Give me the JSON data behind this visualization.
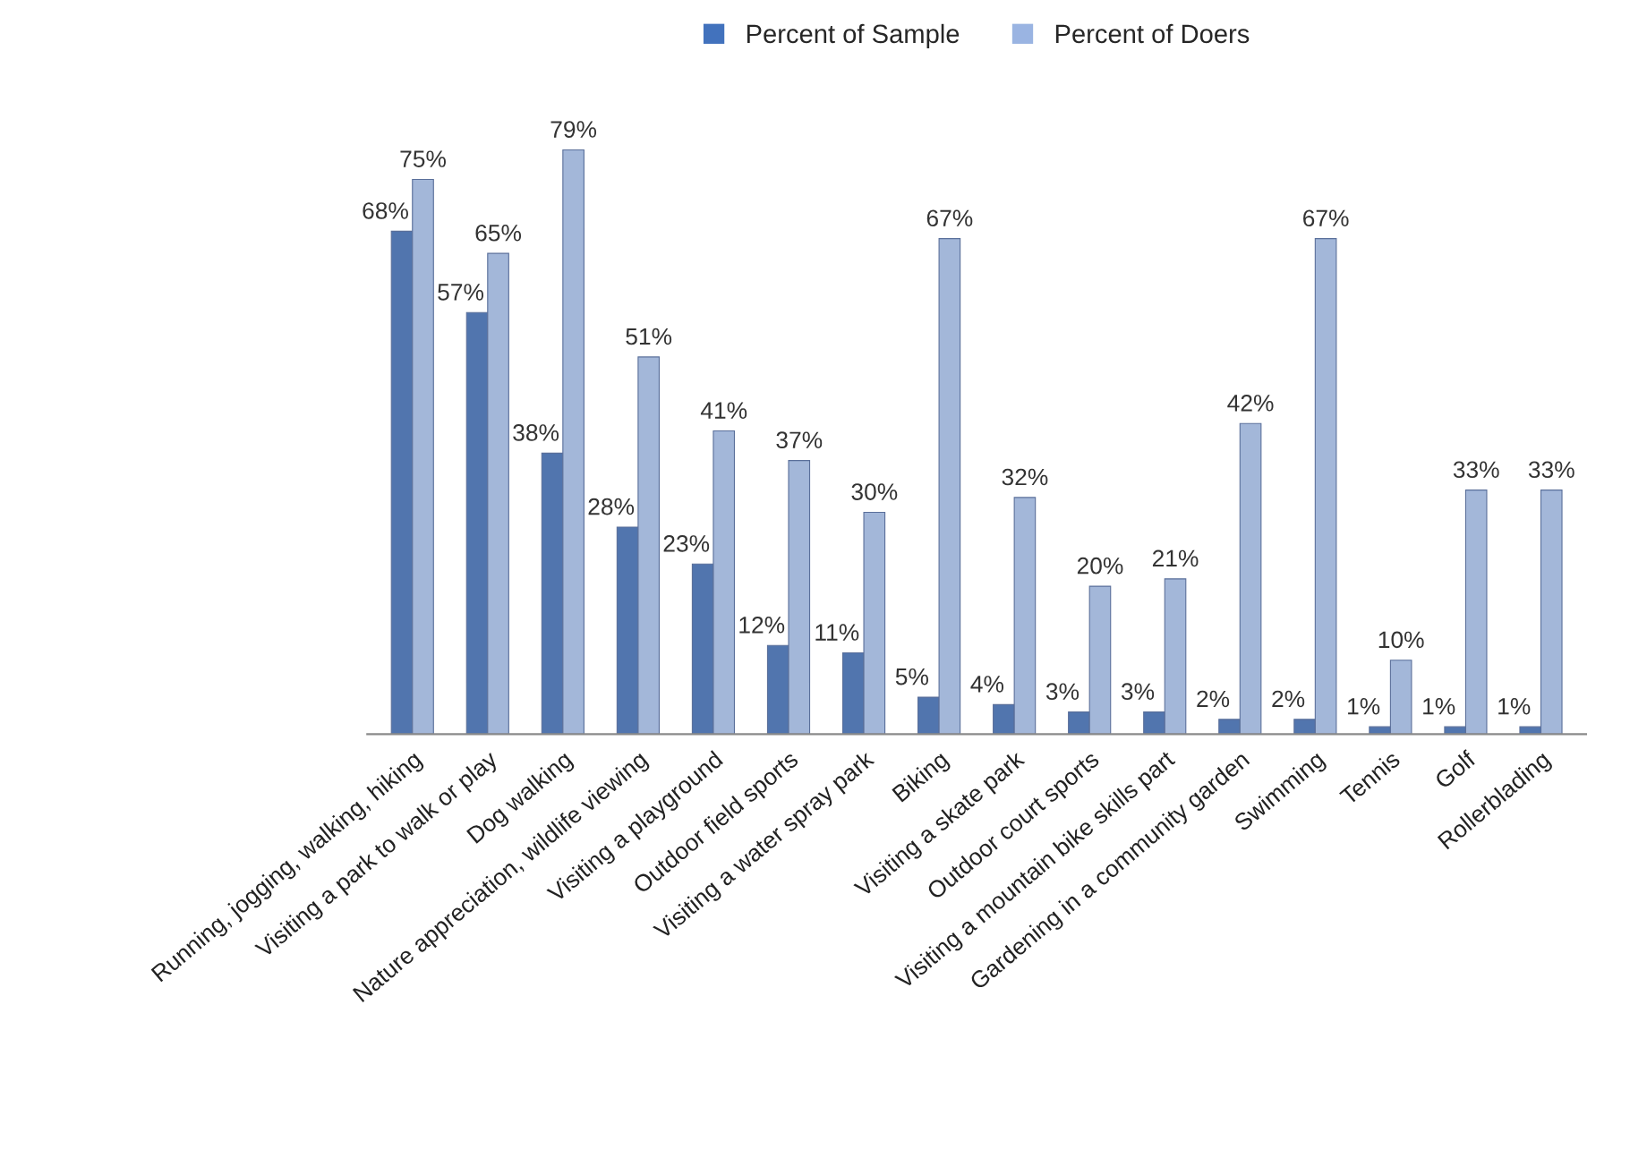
{
  "chart_data": {
    "type": "bar",
    "categories": [
      "Running, jogging, walking, hiking",
      "Visiting a park to walk or play",
      "Dog walking",
      "Nature appreciation, wildlife viewing",
      "Visiting a playground",
      "Outdoor field sports",
      "Visiting a water spray park",
      "Biking",
      "Visiting a skate park",
      "Outdoor court sports",
      "Visiting a mountain bike skills part",
      "Gardening in a community garden",
      "Swimming",
      "Tennis",
      "Golf",
      "Rollerblading"
    ],
    "series": [
      {
        "name": "Percent of Sample",
        "color": "#4272bd",
        "values": [
          68,
          57,
          38,
          28,
          23,
          12,
          11,
          5,
          4,
          3,
          3,
          2,
          2,
          1,
          1,
          1
        ],
        "value_labels": [
          "68%",
          "57%",
          "38%",
          "28%",
          "23%",
          "12%",
          "11%",
          "5%",
          "4%",
          "3%",
          "3%",
          "2%",
          "2%",
          "1%",
          "1%",
          "1%"
        ]
      },
      {
        "name": "Percent of Doers",
        "color": "#9ab4e2",
        "values": [
          75,
          65,
          79,
          51,
          41,
          37,
          30,
          67,
          32,
          20,
          21,
          42,
          67,
          10,
          33,
          33
        ],
        "value_labels": [
          "75%",
          "65%",
          "79%",
          "51%",
          "41%",
          "37%",
          "30%",
          "67%",
          "32%",
          "20%",
          "21%",
          "42%",
          "67%",
          "10%",
          "33%",
          "33%"
        ]
      }
    ],
    "legend": "top"
  }
}
